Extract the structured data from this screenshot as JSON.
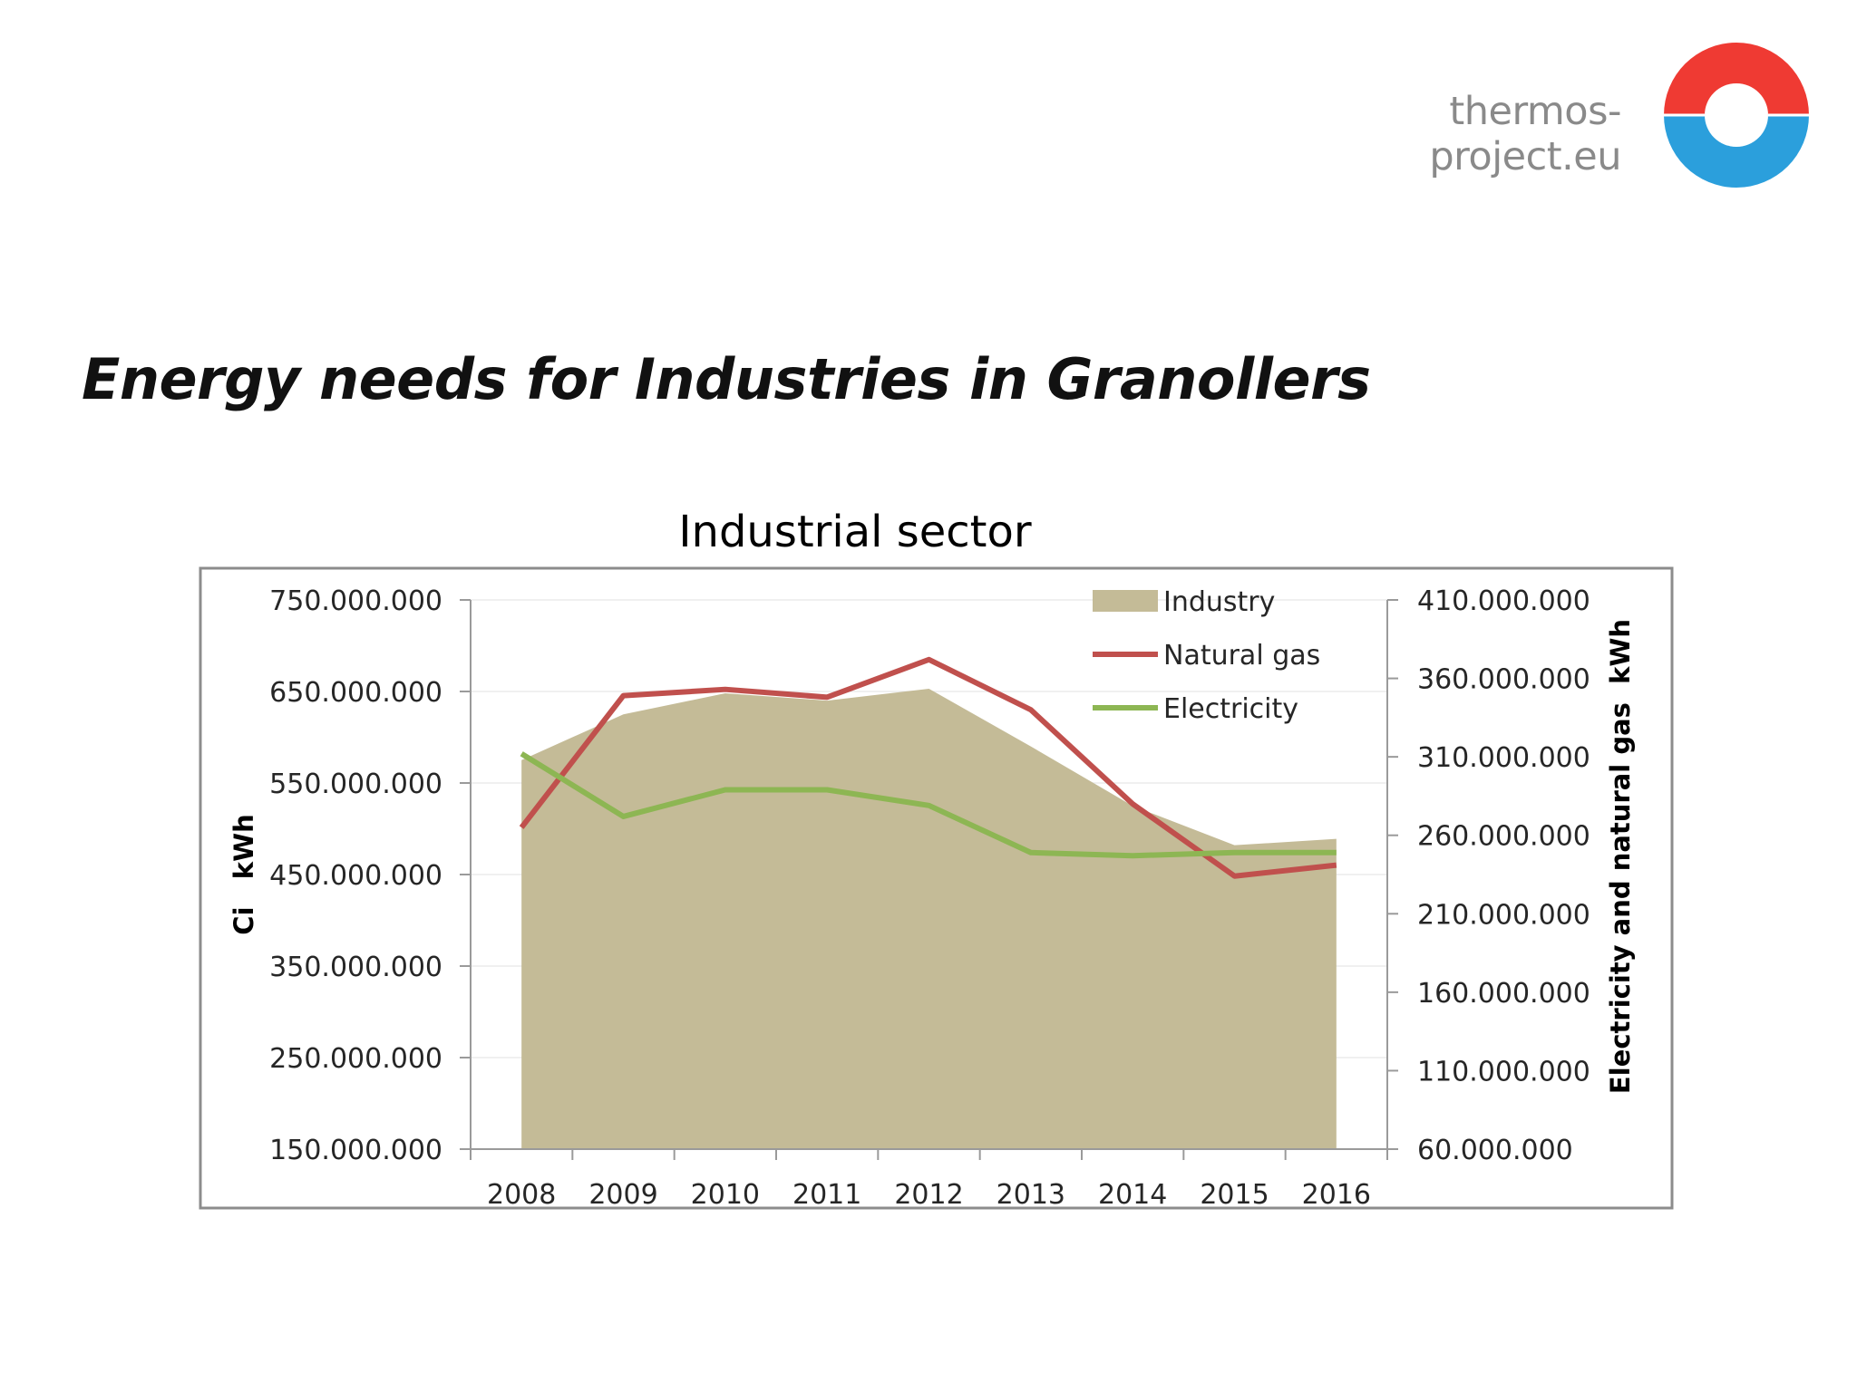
{
  "header": {
    "brand_url": "thermos-project.eu",
    "logo_icon": "thermos-ring-logo-icon",
    "logo_colors": {
      "top": "#ef3a33",
      "bottom": "#2b9fdc"
    }
  },
  "slide": {
    "title": "Energy needs for Industries in Granollers"
  },
  "chart_data": {
    "type": "area",
    "title": "Industrial sector",
    "ylabel": "Ci   kWh",
    "y2label": "Electricity and natural gas  kWh",
    "xlabel": "",
    "categories": [
      "2008",
      "2009",
      "2010",
      "2011",
      "2012",
      "2013",
      "2014",
      "2015",
      "2016"
    ],
    "ylim": [
      150000000,
      750000000
    ],
    "y2lim": [
      60000000,
      410000000
    ],
    "y_ticks": [
      150000000,
      250000000,
      350000000,
      450000000,
      550000000,
      650000000,
      750000000
    ],
    "y_tick_labels": [
      "150.000.000",
      "250.000.000",
      "350.000.000",
      "450.000.000",
      "550.000.000",
      "650.000.000",
      "750.000.000"
    ],
    "y2_ticks": [
      60000000,
      110000000,
      160000000,
      210000000,
      260000000,
      310000000,
      360000000,
      410000000
    ],
    "y2_tick_labels": [
      "60.000.000",
      "110.000.000",
      "160.000.000",
      "210.000.000",
      "260.000.000",
      "310.000.000",
      "360.000.000",
      "410.000.000"
    ],
    "legend_position": "top-right",
    "grid": true,
    "series": [
      {
        "name": "Industry",
        "type": "area",
        "axis": "left",
        "color": "#c4bb97",
        "values": [
          575000000,
          625000000,
          648000000,
          640000000,
          653000000,
          590000000,
          525000000,
          482000000,
          489000000
        ]
      },
      {
        "name": "Natural gas",
        "type": "line",
        "axis": "right",
        "color": "#c0504d",
        "values": [
          265000000,
          349000000,
          353000000,
          348000000,
          372000000,
          340000000,
          280000000,
          234000000,
          241000000
        ]
      },
      {
        "name": "Electricity",
        "type": "line",
        "axis": "right",
        "color": "#8db653",
        "values": [
          312000000,
          272000000,
          289000000,
          289000000,
          279000000,
          249000000,
          247000000,
          249000000,
          249000000
        ]
      }
    ]
  }
}
